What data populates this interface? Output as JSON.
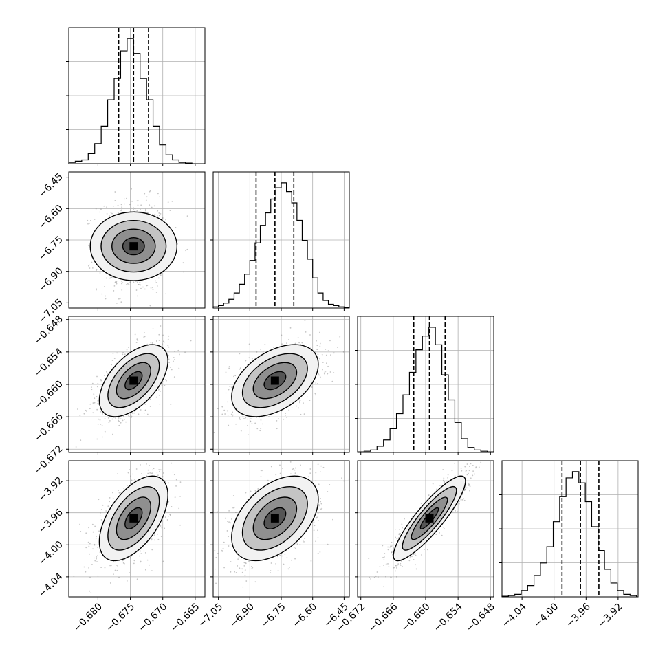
{
  "chart_data": {
    "type": "corner",
    "grid": true,
    "colors": {
      "line": "#000000",
      "grid": "#b0b0b0",
      "points": "#7f7f7f",
      "density": [
        "#f2f2f2",
        "#c4c4c4",
        "#8f8f8f",
        "#555555",
        "#1a1a1a",
        "#000000"
      ]
    },
    "parameters": [
      {
        "range": [
          -0.6845,
          -0.6635
        ],
        "ticks": [
          -0.68,
          -0.675,
          -0.67,
          -0.665
        ],
        "tick_labels": [
          "−0.680",
          "−0.675",
          "−0.670",
          "−0.665"
        ],
        "quantiles": [
          -0.6768,
          -0.6745,
          -0.6722
        ],
        "histogram": {
          "edges": [
            -0.6845,
            -0.6835,
            -0.6825,
            -0.6815,
            -0.6805,
            -0.6795,
            -0.6785,
            -0.6775,
            -0.6765,
            -0.6755,
            -0.6745,
            -0.6735,
            -0.6725,
            -0.6715,
            -0.6705,
            -0.6695,
            -0.6685,
            -0.6675,
            -0.6665,
            -0.6655
          ],
          "counts": [
            0.01,
            0.02,
            0.03,
            0.08,
            0.16,
            0.3,
            0.51,
            0.68,
            0.9,
            1.0,
            0.88,
            0.68,
            0.51,
            0.3,
            0.15,
            0.07,
            0.03,
            0.01,
            0.005
          ]
        }
      },
      {
        "range": [
          -7.075,
          -6.425
        ],
        "ticks": [
          -7.05,
          -6.9,
          -6.75,
          -6.6,
          -6.45
        ],
        "tick_labels": [
          "−7.05",
          "−6.90",
          "−6.75",
          "−6.60",
          "−6.45"
        ],
        "quantiles": [
          -6.87,
          -6.78,
          -6.69
        ],
        "histogram": {
          "edges": [
            -7.075,
            -7.05,
            -7.025,
            -7.0,
            -6.975,
            -6.95,
            -6.925,
            -6.9,
            -6.875,
            -6.85,
            -6.825,
            -6.8,
            -6.775,
            -6.75,
            -6.725,
            -6.7,
            -6.675,
            -6.65,
            -6.625,
            -6.6,
            -6.575,
            -6.55,
            -6.525,
            -6.5,
            -6.475,
            -6.45,
            -6.425
          ],
          "counts": [
            0.01,
            0.02,
            0.04,
            0.07,
            0.12,
            0.19,
            0.27,
            0.38,
            0.52,
            0.66,
            0.76,
            0.87,
            0.96,
            1.0,
            0.93,
            0.84,
            0.7,
            0.54,
            0.39,
            0.24,
            0.12,
            0.06,
            0.03,
            0.02,
            0.01,
            0.005
          ]
        }
      },
      {
        "range": [
          -0.6726,
          -0.6474
        ],
        "ticks": [
          -0.672,
          -0.666,
          -0.66,
          -0.654,
          -0.648
        ],
        "tick_labels": [
          "−0.672",
          "−0.666",
          "−0.660",
          "−0.654",
          "−0.648"
        ],
        "quantiles": [
          -0.6622,
          -0.6593,
          -0.6564
        ],
        "histogram": {
          "edges": [
            -0.6726,
            -0.6714,
            -0.6702,
            -0.669,
            -0.6678,
            -0.6666,
            -0.6654,
            -0.6642,
            -0.663,
            -0.6618,
            -0.6606,
            -0.6594,
            -0.6582,
            -0.657,
            -0.6558,
            -0.6546,
            -0.6534,
            -0.6522,
            -0.651,
            -0.6498,
            -0.6486,
            -0.6474
          ],
          "counts": [
            0.005,
            0.01,
            0.02,
            0.05,
            0.1,
            0.19,
            0.31,
            0.46,
            0.64,
            0.82,
            0.93,
            1.0,
            0.86,
            0.62,
            0.42,
            0.24,
            0.11,
            0.04,
            0.02,
            0.01,
            0.005
          ]
        }
      },
      {
        "range": [
          -4.065,
          -3.895
        ],
        "ticks": [
          -4.04,
          -4.0,
          -3.96,
          -3.92
        ],
        "tick_labels": [
          "−4.04",
          "−4.00",
          "−3.96",
          "−3.92"
        ],
        "quantiles": [
          -3.99,
          -3.967,
          -3.944
        ],
        "histogram": {
          "edges": [
            -4.065,
            -4.057,
            -4.049,
            -4.041,
            -4.033,
            -4.025,
            -4.017,
            -4.009,
            -4.001,
            -3.993,
            -3.985,
            -3.977,
            -3.969,
            -3.961,
            -3.953,
            -3.945,
            -3.937,
            -3.929,
            -3.921,
            -3.913,
            -3.905,
            -3.897
          ],
          "counts": [
            0.005,
            0.01,
            0.02,
            0.05,
            0.09,
            0.17,
            0.27,
            0.4,
            0.6,
            0.8,
            0.95,
            1.0,
            0.91,
            0.76,
            0.56,
            0.37,
            0.22,
            0.11,
            0.05,
            0.02,
            0.01
          ]
        }
      }
    ],
    "correlations": [
      {
        "x": 0,
        "y": 1,
        "rho": 0.0
      },
      {
        "x": 0,
        "y": 2,
        "rho": 0.55
      },
      {
        "x": 1,
        "y": 2,
        "rho": 0.45
      },
      {
        "x": 0,
        "y": 3,
        "rho": 0.55
      },
      {
        "x": 1,
        "y": 3,
        "rho": 0.45
      },
      {
        "x": 2,
        "y": 3,
        "rho": 0.88
      }
    ],
    "contour_levels": [
      0.5,
      1.0,
      1.5,
      2.0
    ]
  }
}
